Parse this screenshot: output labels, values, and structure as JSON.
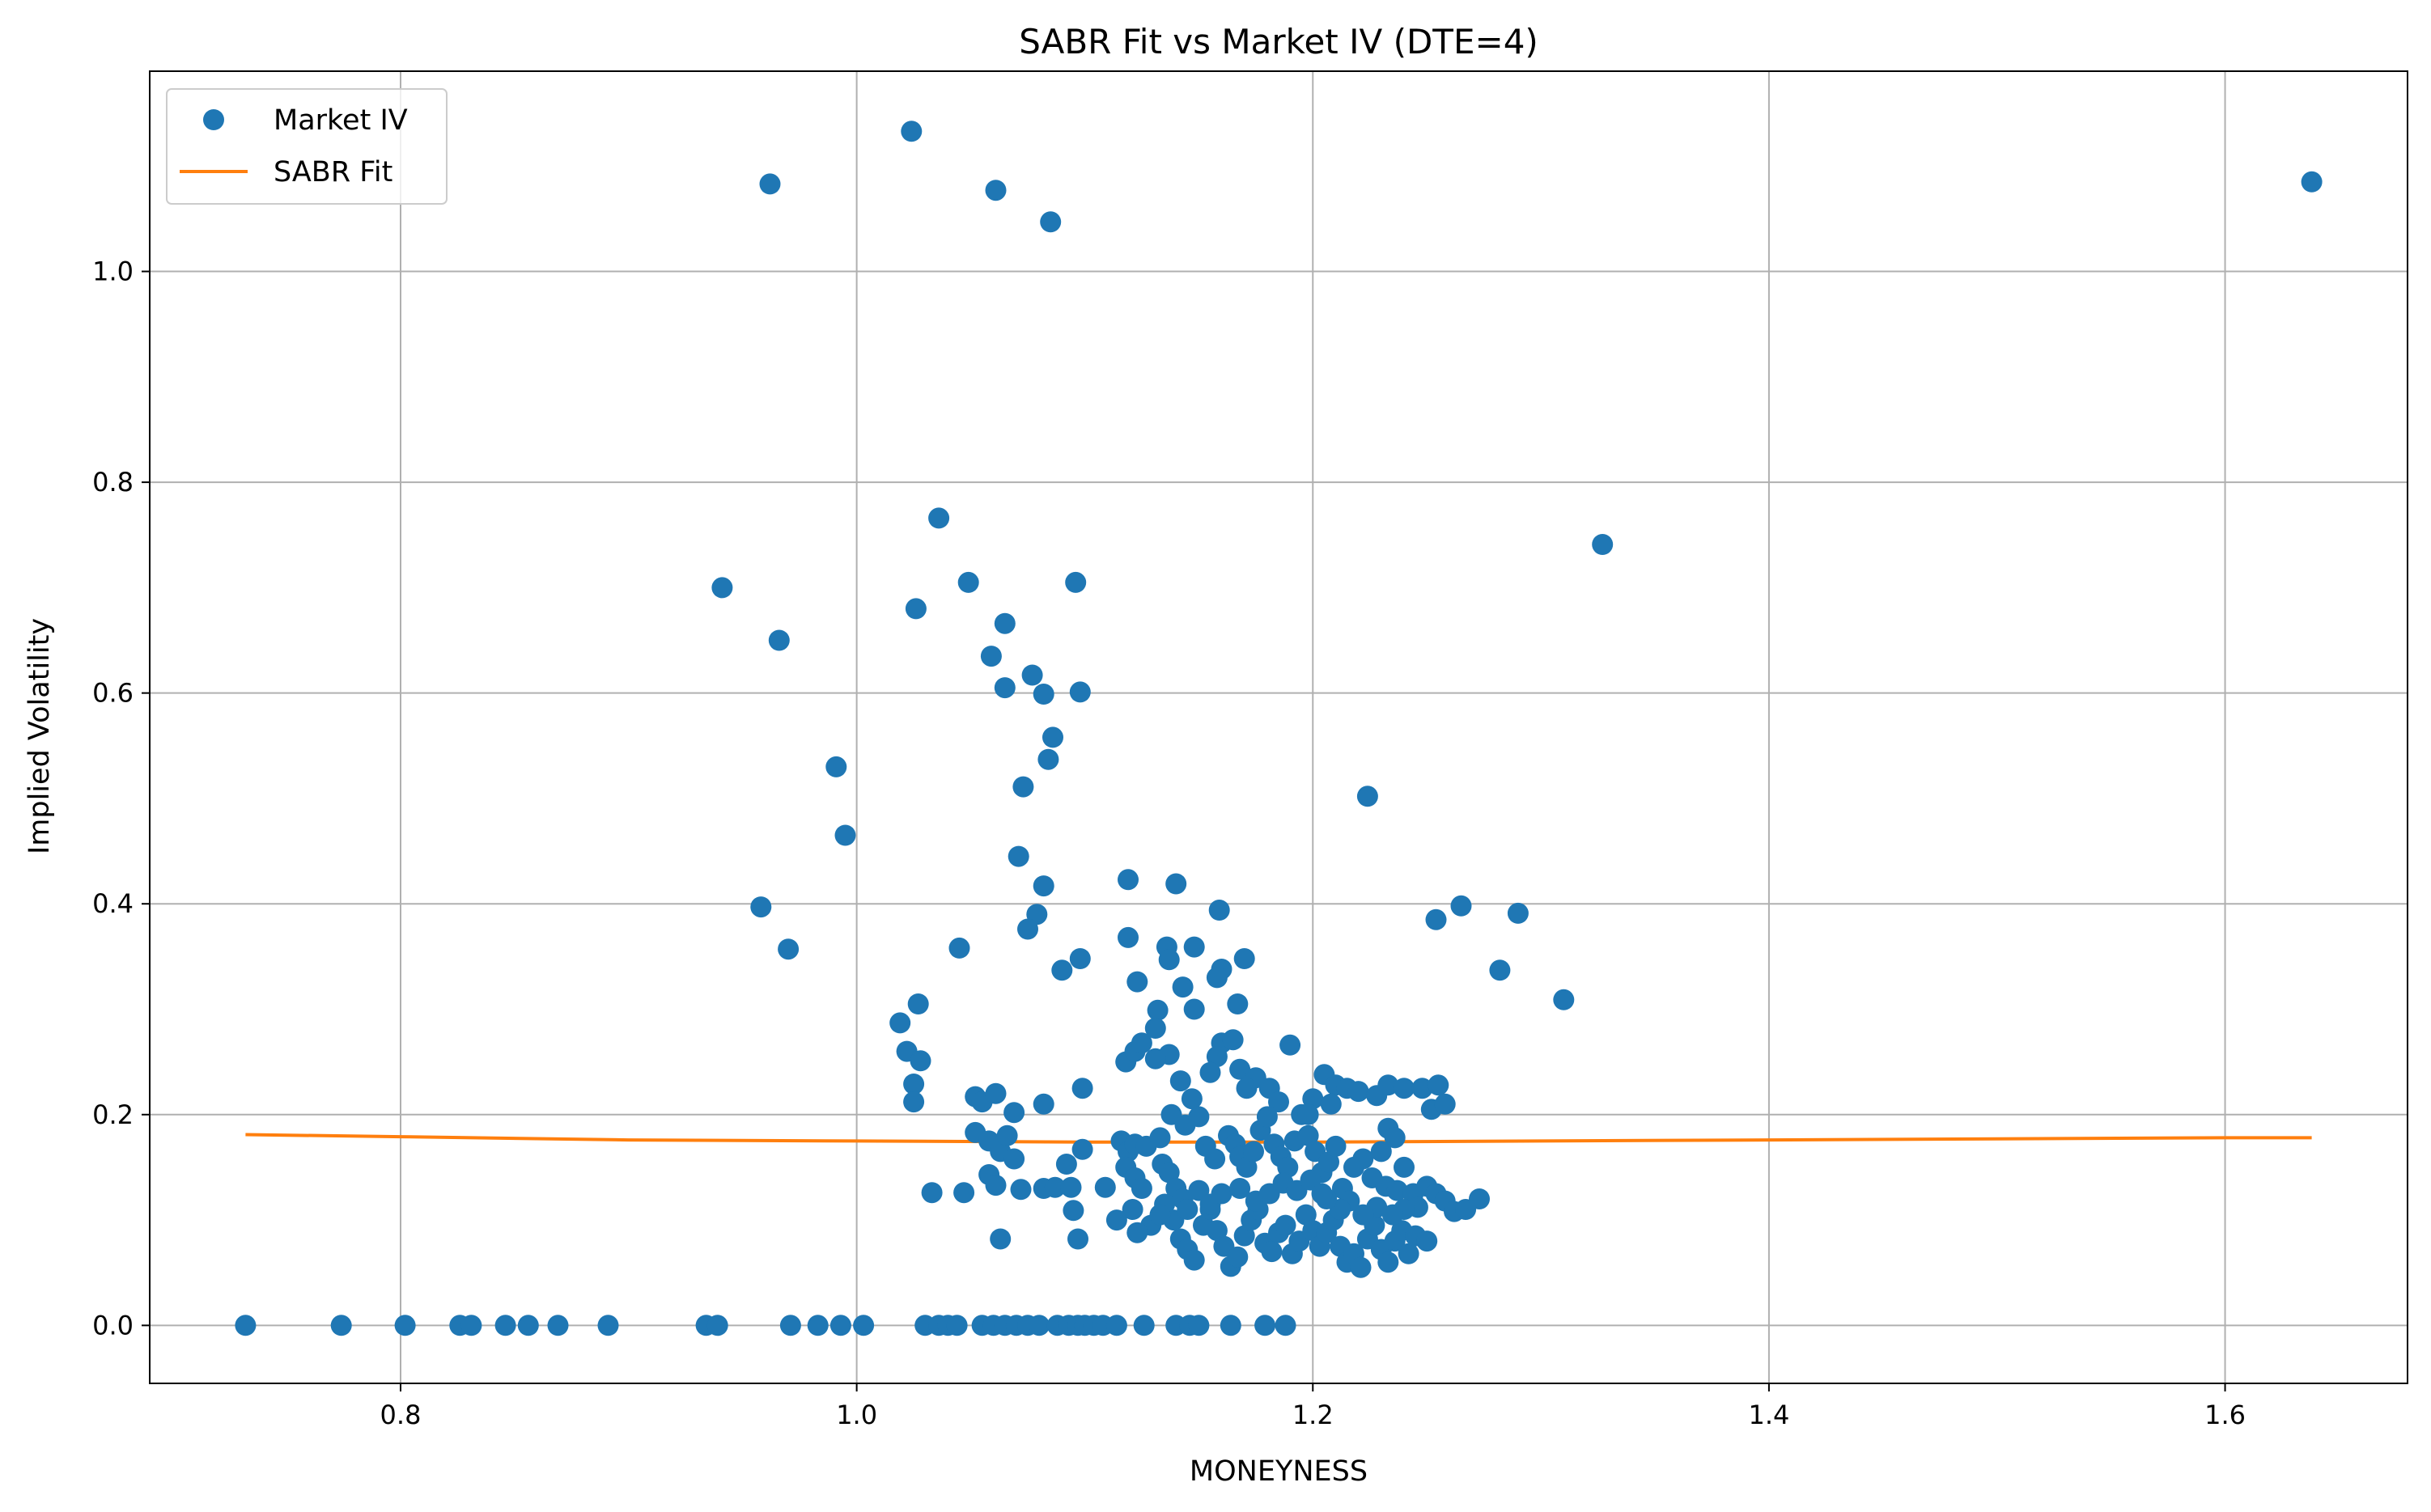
{
  "chart_data": {
    "type": "scatter",
    "title": "SABR Fit vs Market IV (DTE=4)",
    "xlabel": "MONEYNESS",
    "ylabel": "Implied Volatility",
    "xlim": [
      0.69,
      1.68
    ],
    "ylim": [
      -0.055,
      1.19
    ],
    "xticks": [
      0.8,
      1.0,
      1.2,
      1.4,
      1.6
    ],
    "xtick_labels": [
      "0.8",
      "1.0",
      "1.2",
      "1.4",
      "1.6"
    ],
    "yticks": [
      0.0,
      0.2,
      0.4,
      0.6,
      0.8,
      1.0
    ],
    "ytick_labels": [
      "0.0",
      "0.2",
      "0.4",
      "0.6",
      "0.8",
      "1.0"
    ],
    "grid": true,
    "legend_position": "top-left",
    "series": [
      {
        "name": "Market IV",
        "kind": "markers",
        "color": "#1f77b4",
        "points": [
          [
            0.732,
            0
          ],
          [
            0.774,
            0
          ],
          [
            0.802,
            0
          ],
          [
            0.826,
            0
          ],
          [
            0.831,
            0
          ],
          [
            0.846,
            0
          ],
          [
            0.856,
            0
          ],
          [
            0.869,
            0
          ],
          [
            0.891,
            0
          ],
          [
            0.934,
            0
          ],
          [
            0.939,
            0
          ],
          [
            0.971,
            0
          ],
          [
            0.983,
            0
          ],
          [
            0.993,
            0
          ],
          [
            1.003,
            0
          ],
          [
            1.03,
            0
          ],
          [
            1.036,
            0
          ],
          [
            1.04,
            0
          ],
          [
            1.044,
            0
          ],
          [
            1.055,
            0
          ],
          [
            1.06,
            0
          ],
          [
            1.065,
            0
          ],
          [
            1.07,
            0
          ],
          [
            1.075,
            0
          ],
          [
            1.08,
            0
          ],
          [
            1.088,
            0
          ],
          [
            1.093,
            0
          ],
          [
            1.097,
            0
          ],
          [
            1.1,
            0
          ],
          [
            1.104,
            0
          ],
          [
            1.108,
            0
          ],
          [
            1.114,
            0
          ],
          [
            1.126,
            0
          ],
          [
            1.14,
            0
          ],
          [
            1.146,
            0
          ],
          [
            1.15,
            0
          ],
          [
            1.164,
            0
          ],
          [
            1.179,
            0
          ],
          [
            1.188,
            0
          ],
          [
            0.962,
            1.083
          ],
          [
            1.024,
            1.133
          ],
          [
            1.061,
            1.077
          ],
          [
            1.085,
            1.047
          ],
          [
            1.638,
            1.085
          ],
          [
            1.327,
            0.741
          ],
          [
            1.036,
            0.766
          ],
          [
            0.941,
            0.7
          ],
          [
            1.049,
            0.705
          ],
          [
            1.096,
            0.705
          ],
          [
            1.026,
            0.68
          ],
          [
            0.966,
            0.65
          ],
          [
            1.065,
            0.666
          ],
          [
            1.059,
            0.635
          ],
          [
            1.077,
            0.617
          ],
          [
            1.065,
            0.605
          ],
          [
            1.082,
            0.599
          ],
          [
            1.098,
            0.601
          ],
          [
            1.086,
            0.558
          ],
          [
            1.084,
            0.537
          ],
          [
            0.991,
            0.53
          ],
          [
            1.073,
            0.511
          ],
          [
            1.224,
            0.502
          ],
          [
            0.995,
            0.465
          ],
          [
            1.071,
            0.445
          ],
          [
            1.082,
            0.417
          ],
          [
            1.079,
            0.39
          ],
          [
            1.075,
            0.376
          ],
          [
            1.119,
            0.423
          ],
          [
            1.14,
            0.419
          ],
          [
            1.159,
            0.394
          ],
          [
            0.958,
            0.397
          ],
          [
            0.97,
            0.357
          ],
          [
            1.045,
            0.358
          ],
          [
            1.254,
            0.385
          ],
          [
            1.265,
            0.398
          ],
          [
            1.29,
            0.391
          ],
          [
            1.282,
            0.337
          ],
          [
            1.31,
            0.309
          ],
          [
            1.09,
            0.337
          ],
          [
            1.098,
            0.348
          ],
          [
            1.119,
            0.368
          ],
          [
            1.136,
            0.359
          ],
          [
            1.137,
            0.347
          ],
          [
            1.148,
            0.359
          ],
          [
            1.17,
            0.348
          ],
          [
            1.16,
            0.338
          ],
          [
            1.158,
            0.33
          ],
          [
            1.143,
            0.321
          ],
          [
            1.123,
            0.326
          ],
          [
            1.027,
            0.305
          ],
          [
            1.019,
            0.287
          ],
          [
            1.022,
            0.26
          ],
          [
            1.028,
            0.251
          ],
          [
            1.025,
            0.229
          ],
          [
            1.025,
            0.212
          ],
          [
            1.132,
            0.299
          ],
          [
            1.148,
            0.3
          ],
          [
            1.167,
            0.305
          ],
          [
            1.131,
            0.282
          ],
          [
            1.118,
            0.25
          ],
          [
            1.122,
            0.26
          ],
          [
            1.125,
            0.268
          ],
          [
            1.137,
            0.257
          ],
          [
            1.131,
            0.253
          ],
          [
            1.16,
            0.268
          ],
          [
            1.165,
            0.271
          ],
          [
            1.158,
            0.255
          ],
          [
            1.155,
            0.24
          ],
          [
            1.142,
            0.232
          ],
          [
            1.168,
            0.243
          ],
          [
            1.175,
            0.235
          ],
          [
            1.171,
            0.225
          ],
          [
            1.181,
            0.225
          ],
          [
            1.185,
            0.212
          ],
          [
            1.19,
            0.266
          ],
          [
            1.099,
            0.225
          ],
          [
            1.082,
            0.21
          ],
          [
            1.052,
            0.217
          ],
          [
            1.055,
            0.212
          ],
          [
            1.061,
            0.22
          ],
          [
            1.069,
            0.202
          ],
          [
            1.052,
            0.183
          ],
          [
            1.058,
            0.175
          ],
          [
            1.063,
            0.165
          ],
          [
            1.066,
            0.18
          ],
          [
            1.069,
            0.158
          ],
          [
            1.058,
            0.143
          ],
          [
            1.061,
            0.133
          ],
          [
            1.072,
            0.129
          ],
          [
            1.082,
            0.13
          ],
          [
            1.087,
            0.131
          ],
          [
            1.092,
            0.153
          ],
          [
            1.094,
            0.131
          ],
          [
            1.099,
            0.167
          ],
          [
            1.097,
            0.082
          ],
          [
            1.063,
            0.082
          ],
          [
            1.095,
            0.109
          ],
          [
            1.033,
            0.126
          ],
          [
            1.047,
            0.126
          ],
          [
            1.109,
            0.131
          ],
          [
            1.116,
            0.175
          ],
          [
            1.119,
            0.165
          ],
          [
            1.122,
            0.172
          ],
          [
            1.127,
            0.17
          ],
          [
            1.133,
            0.178
          ],
          [
            1.118,
            0.15
          ],
          [
            1.122,
            0.14
          ],
          [
            1.125,
            0.13
          ],
          [
            1.129,
            0.095
          ],
          [
            1.121,
            0.11
          ],
          [
            1.114,
            0.1
          ],
          [
            1.123,
            0.088
          ],
          [
            1.134,
            0.153
          ],
          [
            1.137,
            0.145
          ],
          [
            1.14,
            0.13
          ],
          [
            1.143,
            0.12
          ],
          [
            1.138,
            0.2
          ],
          [
            1.144,
            0.19
          ],
          [
            1.147,
            0.215
          ],
          [
            1.15,
            0.198
          ],
          [
            1.153,
            0.17
          ],
          [
            1.157,
            0.158
          ],
          [
            1.163,
            0.18
          ],
          [
            1.166,
            0.172
          ],
          [
            1.168,
            0.16
          ],
          [
            1.171,
            0.15
          ],
          [
            1.174,
            0.165
          ],
          [
            1.177,
            0.185
          ],
          [
            1.18,
            0.198
          ],
          [
            1.183,
            0.172
          ],
          [
            1.186,
            0.16
          ],
          [
            1.189,
            0.15
          ],
          [
            1.192,
            0.175
          ],
          [
            1.195,
            0.2
          ],
          [
            1.198,
            0.18
          ],
          [
            1.201,
            0.165
          ],
          [
            1.204,
            0.145
          ],
          [
            1.207,
            0.155
          ],
          [
            1.21,
            0.17
          ],
          [
            1.213,
            0.13
          ],
          [
            1.139,
            0.1
          ],
          [
            1.142,
            0.082
          ],
          [
            1.145,
            0.072
          ],
          [
            1.148,
            0.062
          ],
          [
            1.152,
            0.095
          ],
          [
            1.155,
            0.11
          ],
          [
            1.158,
            0.09
          ],
          [
            1.161,
            0.075
          ],
          [
            1.164,
            0.056
          ],
          [
            1.167,
            0.065
          ],
          [
            1.17,
            0.085
          ],
          [
            1.173,
            0.1
          ],
          [
            1.176,
            0.11
          ],
          [
            1.179,
            0.078
          ],
          [
            1.182,
            0.07
          ],
          [
            1.185,
            0.088
          ],
          [
            1.188,
            0.095
          ],
          [
            1.191,
            0.068
          ],
          [
            1.194,
            0.08
          ],
          [
            1.197,
            0.105
          ],
          [
            1.2,
            0.09
          ],
          [
            1.203,
            0.075
          ],
          [
            1.206,
            0.088
          ],
          [
            1.209,
            0.1
          ],
          [
            1.212,
            0.075
          ],
          [
            1.215,
            0.06
          ],
          [
            1.218,
            0.068
          ],
          [
            1.221,
            0.055
          ],
          [
            1.224,
            0.082
          ],
          [
            1.227,
            0.095
          ],
          [
            1.23,
            0.072
          ],
          [
            1.233,
            0.06
          ],
          [
            1.236,
            0.08
          ],
          [
            1.239,
            0.09
          ],
          [
            1.242,
            0.068
          ],
          [
            1.245,
            0.085
          ],
          [
            1.25,
            0.08
          ],
          [
            1.205,
            0.238
          ],
          [
            1.21,
            0.228
          ],
          [
            1.215,
            0.225
          ],
          [
            1.22,
            0.222
          ],
          [
            1.228,
            0.218
          ],
          [
            1.233,
            0.228
          ],
          [
            1.24,
            0.225
          ],
          [
            1.248,
            0.225
          ],
          [
            1.255,
            0.228
          ],
          [
            1.252,
            0.205
          ],
          [
            1.258,
            0.21
          ],
          [
            1.2,
            0.215
          ],
          [
            1.208,
            0.21
          ],
          [
            1.198,
            0.2
          ],
          [
            1.233,
            0.187
          ],
          [
            1.236,
            0.178
          ],
          [
            1.23,
            0.165
          ],
          [
            1.222,
            0.158
          ],
          [
            1.218,
            0.15
          ],
          [
            1.24,
            0.15
          ],
          [
            1.226,
            0.14
          ],
          [
            1.232,
            0.132
          ],
          [
            1.237,
            0.128
          ],
          [
            1.244,
            0.125
          ],
          [
            1.25,
            0.132
          ],
          [
            1.254,
            0.125
          ],
          [
            1.258,
            0.118
          ],
          [
            1.262,
            0.108
          ],
          [
            1.267,
            0.11
          ],
          [
            1.273,
            0.12
          ],
          [
            1.246,
            0.112
          ],
          [
            1.24,
            0.11
          ],
          [
            1.235,
            0.105
          ],
          [
            1.228,
            0.112
          ],
          [
            1.222,
            0.105
          ],
          [
            1.216,
            0.118
          ],
          [
            1.212,
            0.11
          ],
          [
            1.206,
            0.12
          ],
          [
            1.135,
            0.115
          ],
          [
            1.133,
            0.105
          ],
          [
            1.145,
            0.11
          ],
          [
            1.15,
            0.128
          ],
          [
            1.155,
            0.115
          ],
          [
            1.16,
            0.125
          ],
          [
            1.168,
            0.13
          ],
          [
            1.175,
            0.118
          ],
          [
            1.181,
            0.125
          ],
          [
            1.187,
            0.135
          ],
          [
            1.193,
            0.128
          ],
          [
            1.199,
            0.138
          ],
          [
            1.204,
            0.125
          ]
        ]
      },
      {
        "name": "SABR Fit",
        "kind": "line",
        "color": "#ff7f0e",
        "points": [
          [
            0.732,
            0.181
          ],
          [
            0.8,
            0.179
          ],
          [
            0.9,
            0.176
          ],
          [
            1.0,
            0.175
          ],
          [
            1.1,
            0.174
          ],
          [
            1.2,
            0.174
          ],
          [
            1.3,
            0.175
          ],
          [
            1.4,
            0.176
          ],
          [
            1.5,
            0.177
          ],
          [
            1.6,
            0.178
          ],
          [
            1.638,
            0.178
          ]
        ]
      }
    ]
  }
}
